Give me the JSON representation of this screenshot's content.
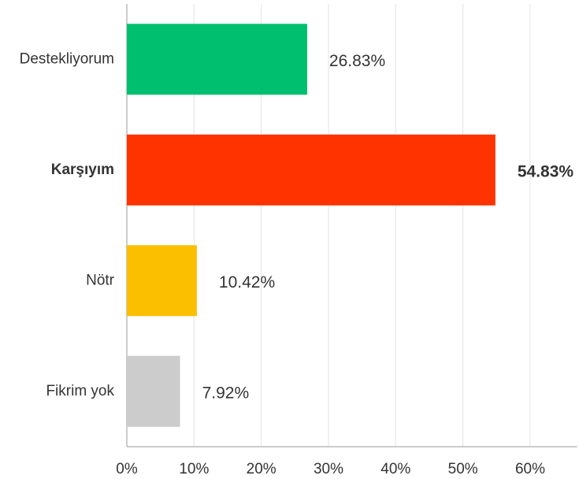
{
  "chart_data": {
    "type": "bar",
    "orientation": "horizontal",
    "categories": [
      "Destekliyorum",
      "Karşıyım",
      "Nötr",
      "Fikrim yok"
    ],
    "values": [
      26.83,
      54.83,
      10.42,
      7.92
    ],
    "value_labels": [
      "26.83%",
      "54.83%",
      "10.42%",
      "7.92%"
    ],
    "colors": [
      "#00c06f",
      "#ff3300",
      "#fbbf00",
      "#cccccc"
    ],
    "highlight_index": 1,
    "xlim": [
      0,
      67
    ],
    "xticks": [
      {
        "value": 0,
        "label": "0%"
      },
      {
        "value": 10,
        "label": "10%"
      },
      {
        "value": 20,
        "label": "20%"
      },
      {
        "value": 30,
        "label": "30%"
      },
      {
        "value": 40,
        "label": "40%"
      },
      {
        "value": 50,
        "label": "50%"
      },
      {
        "value": 60,
        "label": "60%"
      }
    ],
    "grid": true
  }
}
